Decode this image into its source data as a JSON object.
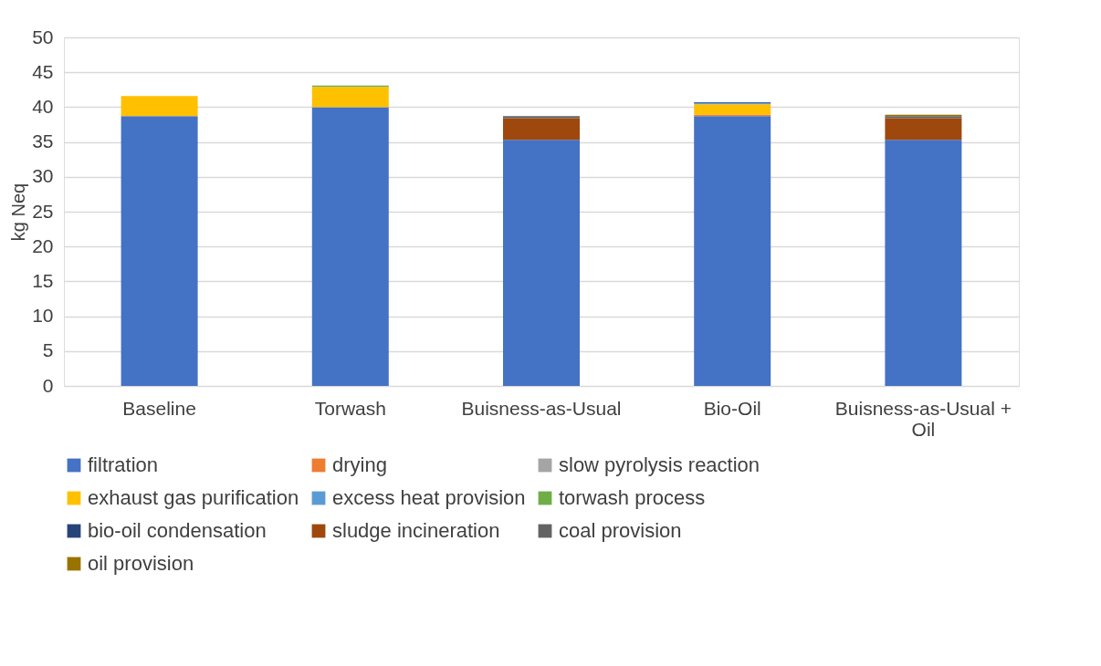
{
  "chart_data": {
    "type": "bar",
    "stacked": true,
    "ylabel": "kg Neq",
    "categories": [
      "Baseline",
      "Torwash",
      "Buisness-as-Usual",
      "Bio-Oil",
      "Buisness-as-Usual + Oil"
    ],
    "ylim": [
      0,
      50
    ],
    "yticks": [
      0,
      5,
      10,
      15,
      20,
      25,
      30,
      35,
      40,
      45,
      50
    ],
    "grid": "y",
    "legend": "bottom",
    "series": [
      {
        "name": "filtration",
        "color": "#4472c4",
        "values": [
          38.7,
          40.0,
          35.3,
          38.7,
          35.3
        ]
      },
      {
        "name": "drying",
        "color": "#ed7d31",
        "values": [
          null,
          null,
          null,
          0.2,
          null
        ]
      },
      {
        "name": "slow pyrolysis reaction",
        "color": "#a5a5a5",
        "values": [
          null,
          null,
          null,
          null,
          null
        ]
      },
      {
        "name": "exhaust gas purification",
        "color": "#ffc000",
        "values": [
          2.9,
          2.9,
          null,
          1.5,
          null
        ]
      },
      {
        "name": "excess heat provision",
        "color": "#5b9bd5",
        "values": [
          null,
          null,
          null,
          0.2,
          null
        ]
      },
      {
        "name": "torwash process",
        "color": "#70ad47",
        "values": [
          null,
          0.2,
          null,
          null,
          null
        ]
      },
      {
        "name": "bio-oil condensation",
        "color": "#264478",
        "values": [
          null,
          null,
          null,
          0.1,
          null
        ]
      },
      {
        "name": "sludge incineration",
        "color": "#9e480e",
        "values": [
          null,
          null,
          3.1,
          null,
          3.1
        ]
      },
      {
        "name": "coal provision",
        "color": "#636363",
        "values": [
          null,
          null,
          0.3,
          null,
          0.3
        ]
      },
      {
        "name": "oil provision",
        "color": "#997300",
        "values": [
          null,
          null,
          null,
          null,
          0.2
        ]
      }
    ]
  }
}
